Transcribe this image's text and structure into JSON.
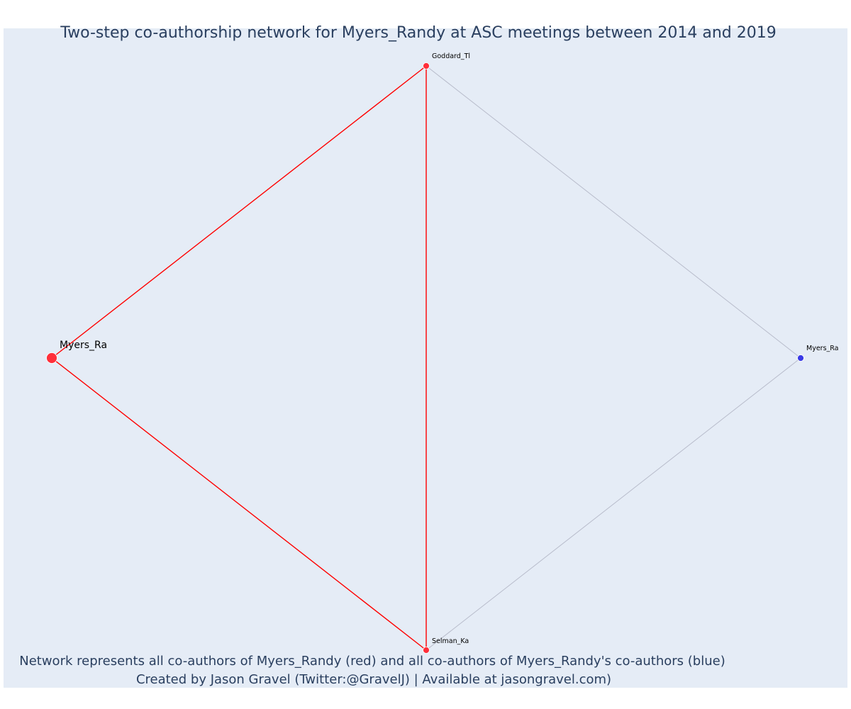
{
  "title": "Two-step co-authorship network for Myers_Randy at ASC meetings between 2014 and 2019",
  "footer": {
    "line1": "Network represents all co-authors of Myers_Randy (red) and all co-authors of Myers_Randy's co-authors (blue)",
    "line2": "Created by Jason Gravel (Twitter:@GravelJ) | Available at jasongravel.com)"
  },
  "colors": {
    "plot_background": "#e5ecf6",
    "title_text": "#2a3f5f",
    "primary_node": "#ff2f3a",
    "coauthor_node": "#ff2f3a",
    "second_step_node": "#3a3ae6",
    "primary_edge": "#ff0000",
    "secondary_edge": "#b8bccb"
  },
  "network": {
    "nodes": [
      {
        "id": "n0",
        "label": "Myers_Ra",
        "group": "focal",
        "color": "#ff2f3a"
      },
      {
        "id": "n1",
        "label": "Goddard_Tl",
        "group": "coauthor",
        "color": "#ff2f3a"
      },
      {
        "id": "n2",
        "label": "Selman_Ka",
        "group": "coauthor",
        "color": "#ff2f3a"
      },
      {
        "id": "n3",
        "label": "Myers_Ra",
        "group": "second-step",
        "color": "#3a3ae6"
      }
    ],
    "edges": [
      {
        "source": "n0",
        "target": "n1",
        "type": "primary"
      },
      {
        "source": "n0",
        "target": "n2",
        "type": "primary"
      },
      {
        "source": "n1",
        "target": "n2",
        "type": "primary"
      },
      {
        "source": "n1",
        "target": "n3",
        "type": "secondary"
      },
      {
        "source": "n2",
        "target": "n3",
        "type": "secondary"
      }
    ]
  }
}
